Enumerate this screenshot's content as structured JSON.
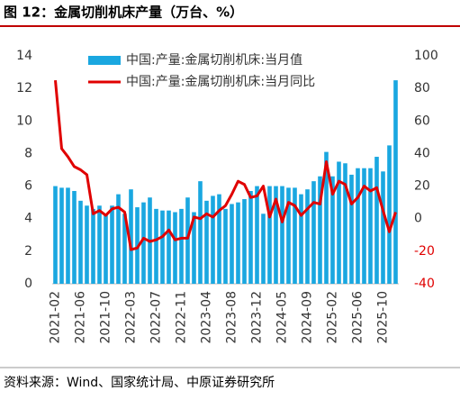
{
  "title": "图 12：金属切削机床产量（万台、%）",
  "source": "资料来源：Wind、国家统计局、中原证券研究所",
  "chart_data": {
    "type": "bar-line",
    "categories": [
      "2021-02",
      null,
      null,
      null,
      "2021-06",
      null,
      null,
      null,
      "2021-10",
      null,
      null,
      null,
      "2022-03",
      null,
      null,
      null,
      "2022-07",
      null,
      null,
      null,
      "2022-11",
      null,
      null,
      null,
      "2023-04",
      null,
      null,
      null,
      "2023-08",
      null,
      null,
      null,
      "2023-12",
      null,
      null,
      null,
      "2024-05",
      null,
      null,
      null,
      "2024-09",
      null,
      null,
      null,
      "2025-02",
      null,
      null,
      null,
      "2025-06",
      null,
      null,
      null,
      "2025-10",
      null,
      null
    ],
    "series": [
      {
        "name": "中国:产量:金属切削机床:当月值",
        "type": "bar",
        "color": "#1aa7e0",
        "values": [
          6.0,
          5.9,
          5.9,
          5.7,
          5.1,
          4.8,
          4.6,
          4.8,
          4.3,
          4.8,
          5.5,
          4.3,
          5.8,
          4.7,
          5.0,
          5.3,
          4.6,
          4.5,
          4.5,
          4.4,
          4.6,
          5.3,
          4.4,
          6.3,
          5.1,
          5.4,
          5.5,
          4.6,
          4.9,
          5.0,
          5.2,
          5.7,
          6.0,
          4.3,
          6.0,
          6.0,
          6.0,
          5.9,
          5.9,
          5.5,
          5.8,
          6.3,
          6.6,
          8.1,
          6.6,
          7.5,
          7.4,
          6.7,
          7.1,
          7.1,
          7.1,
          7.8,
          6.9,
          8.5,
          12.5
        ]
      },
      {
        "name": "中国:产量:金属切削机床:当月同比",
        "type": "line",
        "axis": "y2",
        "color": "#e00000",
        "values": [
          85,
          43,
          38,
          32,
          30,
          27,
          3,
          5,
          2,
          6,
          7,
          4,
          -19,
          -18,
          -12,
          -14,
          -13,
          -11,
          -7,
          -13,
          -12,
          -12,
          1,
          0,
          3,
          1,
          5,
          8,
          15,
          23,
          21,
          13,
          14,
          20,
          1,
          12,
          -2,
          10,
          8,
          2,
          6,
          10,
          9,
          35,
          15,
          23,
          21,
          9,
          13,
          20,
          17,
          19,
          5,
          -8,
          4
        ]
      }
    ],
    "ylim": [
      0,
      14
    ],
    "yticks": [
      0,
      2,
      4,
      6,
      8,
      10,
      12,
      14
    ],
    "y2lim": [
      -40,
      100
    ],
    "y2ticks": [
      -40,
      -20,
      0,
      20,
      40,
      60,
      80,
      100
    ]
  }
}
